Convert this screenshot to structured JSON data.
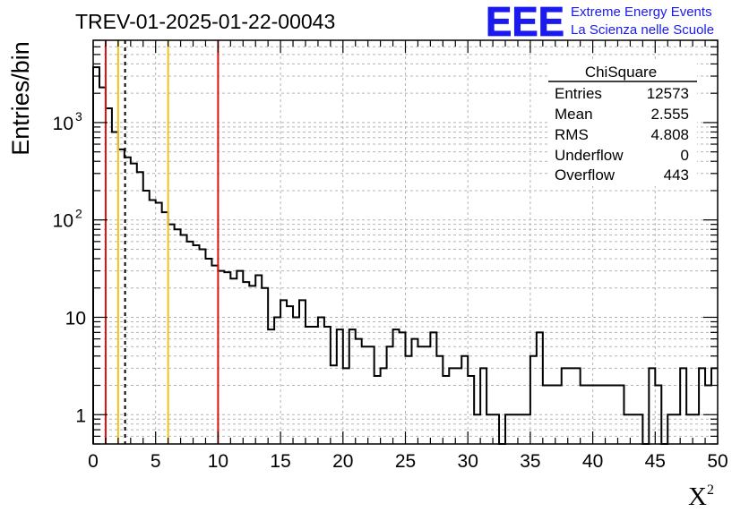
{
  "header": {
    "title": "TREV-01-2025-01-22-00043",
    "logo_text": "EEE",
    "logo_line1": "Extreme Energy Events",
    "logo_line2": "La Scienza nelle Scuole"
  },
  "stats": {
    "title": "ChiSquare",
    "rows": [
      {
        "label": "Entries",
        "value": "12573"
      },
      {
        "label": "Mean",
        "value": "2.555"
      },
      {
        "label": "RMS",
        "value": "4.808"
      },
      {
        "label": "Underflow",
        "value": "0"
      },
      {
        "label": "Overflow",
        "value": "443"
      }
    ]
  },
  "colors": {
    "line": "#000000",
    "red": "#dd1111",
    "yellow": "#f2c21b",
    "grid": "#b4b4b4",
    "logo": "#1a1aee"
  },
  "chart_data": {
    "type": "histogram",
    "xlabel": "X",
    "xlabel_sup": "2",
    "ylabel": "Entries/bin",
    "xlim": [
      0,
      50
    ],
    "ylim": [
      0.5,
      7000
    ],
    "yscale": "log",
    "grid": true,
    "bin_width": 0.5,
    "x_ticks": [
      "0",
      "5",
      "10",
      "15",
      "20",
      "25",
      "30",
      "35",
      "40",
      "45",
      "50"
    ],
    "y_ticks": [
      {
        "value": 1,
        "label": "1",
        "sup": ""
      },
      {
        "value": 10,
        "label": "10",
        "sup": ""
      },
      {
        "value": 100,
        "label": "10",
        "sup": "2"
      },
      {
        "value": 1000,
        "label": "10",
        "sup": "3"
      }
    ],
    "bin_counts": [
      3700,
      2300,
      1400,
      800,
      530,
      440,
      380,
      310,
      200,
      160,
      150,
      120,
      90,
      80,
      70,
      60,
      55,
      50,
      40,
      34,
      30,
      29,
      25,
      30,
      23,
      21,
      27,
      20,
      7.5,
      10,
      15,
      13,
      10,
      15,
      8,
      8,
      10,
      8,
      3.2,
      7.5,
      3,
      7.5,
      6,
      5,
      5,
      2.5,
      3,
      5,
      7.5,
      7,
      4,
      6,
      5,
      5,
      7,
      4,
      2.5,
      3,
      3,
      4,
      2.5,
      1,
      3,
      1,
      1,
      0.4,
      1,
      1,
      1,
      1,
      4,
      7,
      2,
      2,
      2,
      3,
      3,
      3,
      2,
      2,
      2,
      2,
      2,
      2,
      2,
      1,
      1,
      1,
      0.4,
      3,
      2,
      0.4,
      1,
      1,
      3,
      1,
      1,
      3,
      2,
      3
    ],
    "vlines": [
      {
        "x": 1,
        "color": "red",
        "style": "solid"
      },
      {
        "x": 2,
        "color": "yellow",
        "style": "solid"
      },
      {
        "x": 2.555,
        "color": "black",
        "style": "dashed"
      },
      {
        "x": 6,
        "color": "yellow",
        "style": "solid"
      },
      {
        "x": 10,
        "color": "red",
        "style": "solid"
      }
    ]
  }
}
